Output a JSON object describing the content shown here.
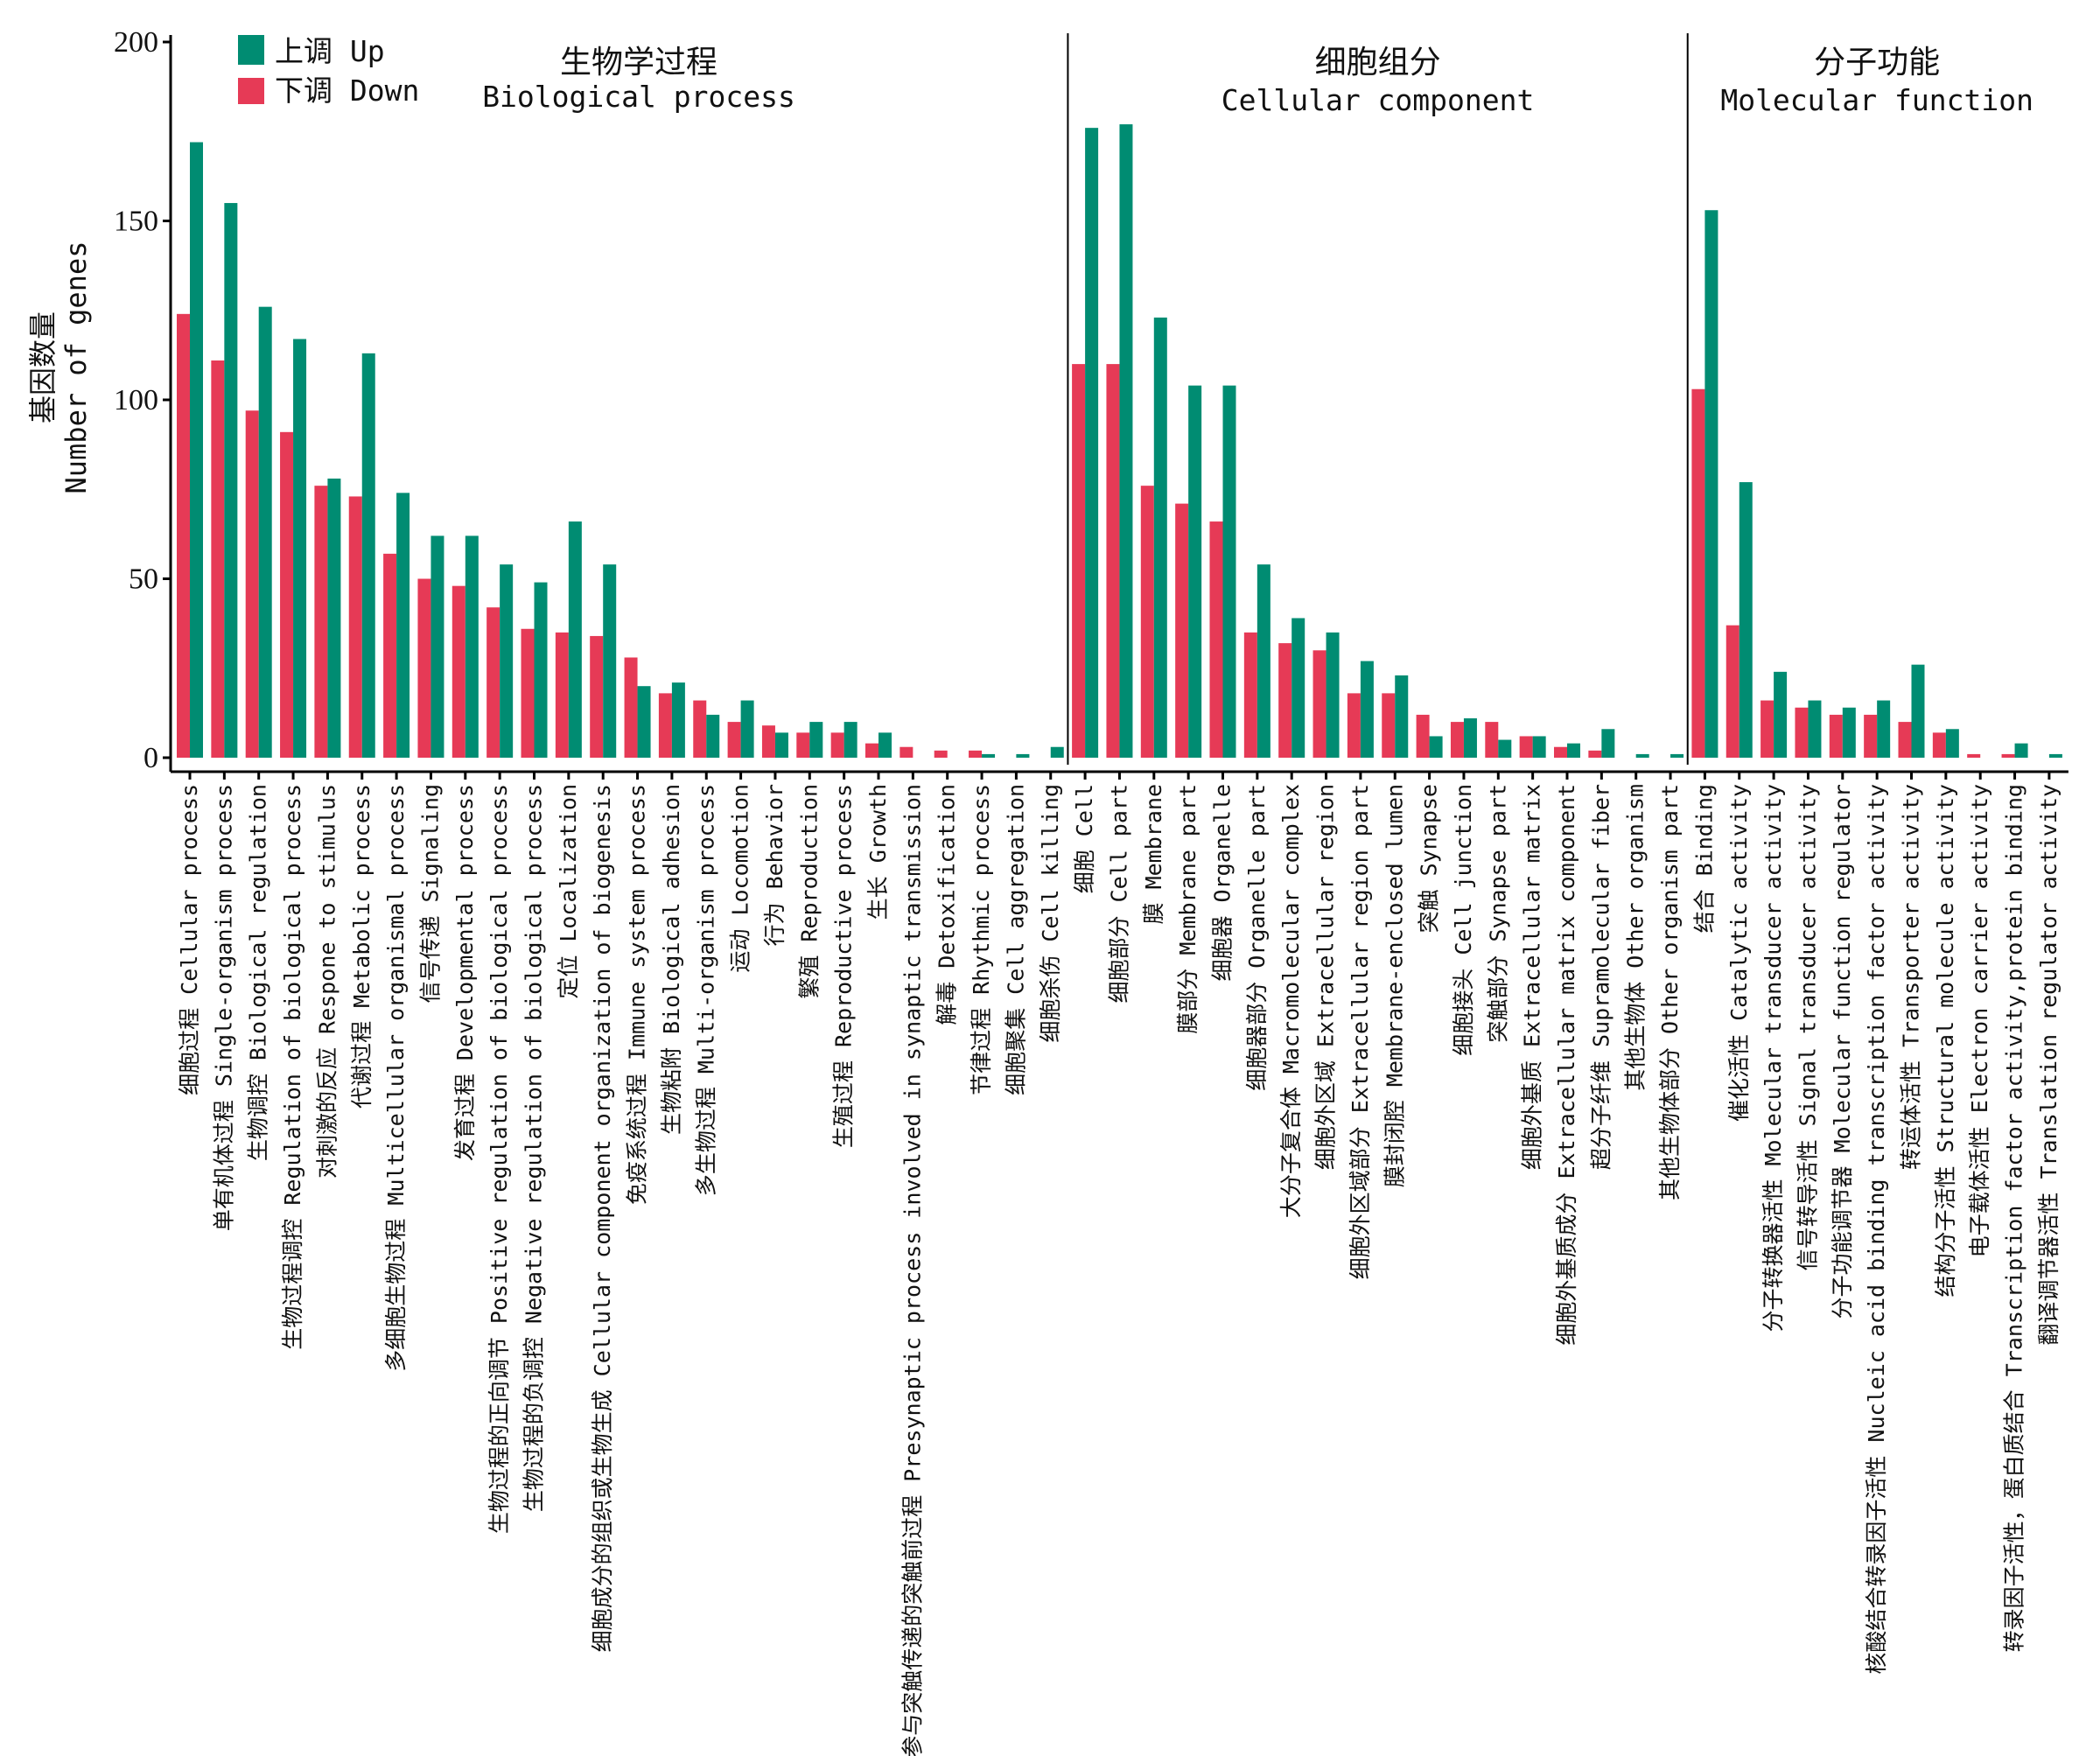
{
  "chart_data": {
    "type": "bar",
    "title": "",
    "xlabel": "",
    "ylabel_cn": "基因数量",
    "ylabel_en": "Number of genes",
    "ylim": [
      0,
      200
    ],
    "yticks": [
      0,
      50,
      100,
      150,
      200
    ],
    "grid": false,
    "legend_position": "top-left",
    "legend": [
      {
        "key": "up",
        "label": "上调 Up",
        "color": "#008C72"
      },
      {
        "key": "down",
        "label": "下调 Down",
        "color": "#E63A56"
      }
    ],
    "bar_order": [
      "down",
      "up"
    ],
    "panels": [
      {
        "title_cn": "生物学过程",
        "title_en": "Biological process",
        "categories": [
          "细胞过程 Cellular process",
          "单有机体过程 Single-organism process",
          "生物调控 Biological regulation",
          "生物过程调控 Regulation of biological process",
          "对刺激的反应 Respone to stimulus",
          "代谢过程 Metabolic process",
          "多细胞生物过程 Multicellular organismal process",
          "信号传递 Signaling",
          "发育过程 Developmental process",
          "生物过程的正向调节 Positive regulation of biological process",
          "生物过程的负调控 Negative regulation of biological process",
          "定位 Localization",
          "细胞成分的组织或生物生成 Cellular component organization of biogenesis",
          "免疫系统过程 Immune system process",
          "生物粘附 Biological adhesion",
          "多生物过程 Multi-organism process",
          "运动 Locomotion",
          "行为 Behavior",
          "繁殖 Reproduction",
          "生殖过程 Reproductive process",
          "生长 Growth",
          "参与突触传递的突触前过程 Presynaptic process involved in synaptic transmission",
          "解毒 Detoxification",
          "节律过程 Rhythmic process",
          "细胞聚集 Cell aggregation",
          "细胞杀伤 Cell killing"
        ],
        "series": [
          {
            "name": "down",
            "values": [
              124,
              111,
              97,
              91,
              76,
              73,
              57,
              50,
              48,
              42,
              36,
              35,
              34,
              28,
              18,
              16,
              10,
              9,
              7,
              7,
              4,
              3,
              2,
              2,
              0,
              0
            ]
          },
          {
            "name": "up",
            "values": [
              172,
              155,
              126,
              117,
              78,
              113,
              74,
              62,
              62,
              54,
              49,
              66,
              54,
              20,
              21,
              12,
              16,
              7,
              10,
              10,
              7,
              0,
              0,
              1,
              1,
              3
            ]
          }
        ]
      },
      {
        "title_cn": "细胞组分",
        "title_en": "Cellular component",
        "categories": [
          "细胞 Cell",
          "细胞部分 Cell part",
          "膜 Membrane",
          "膜部分 Membrane part",
          "细胞器 Organelle",
          "细胞器部分 Organelle part",
          "大分子复合体 Macromolecular complex",
          "细胞外区域 Extracellular region",
          "细胞外区域部分 Extracellular region part",
          "膜封闭腔 Membrane-enclosed lumen",
          "突触 Synapse",
          "细胞接头 Cell junction",
          "突触部分 Synapse part",
          "细胞外基质 Extracellular matrix",
          "细胞外基质成分 Extracellular matrix component",
          "超分子纤维 Supramolecular fiber",
          "其他生物体 Other organism",
          "其他生物体部分 Other organism part"
        ],
        "series": [
          {
            "name": "down",
            "values": [
              110,
              110,
              76,
              71,
              66,
              35,
              32,
              30,
              18,
              18,
              12,
              10,
              10,
              6,
              3,
              2,
              0,
              0
            ]
          },
          {
            "name": "up",
            "values": [
              176,
              177,
              123,
              104,
              104,
              54,
              39,
              35,
              27,
              23,
              6,
              11,
              5,
              6,
              4,
              8,
              1,
              1
            ]
          }
        ]
      },
      {
        "title_cn": "分子功能",
        "title_en": "Molecular function",
        "categories": [
          "结合 Binding",
          "催化活性 Catalytic activity",
          "分子转换器活性 Molecular transducer activity",
          "信号转导活性 Signal transducer activity",
          "分子功能调节器 Molecular function regulator",
          "核酸结合转录因子活性 Nucleic acid binding transcription factor activity",
          "转运体活性 Transporter activity",
          "结构分子活性 Structural molecule activity",
          "电子载体活性 Electron carrier activity",
          "转录因子活性，蛋白质结合 Transcription factor activity,protein binding",
          "翻译调节器活性 Translation regulator activity"
        ],
        "series": [
          {
            "name": "down",
            "values": [
              103,
              37,
              16,
              14,
              12,
              12,
              10,
              7,
              1,
              1,
              0
            ]
          },
          {
            "name": "up",
            "values": [
              153,
              77,
              24,
              16,
              14,
              16,
              26,
              8,
              0,
              4,
              1
            ]
          }
        ]
      }
    ]
  }
}
